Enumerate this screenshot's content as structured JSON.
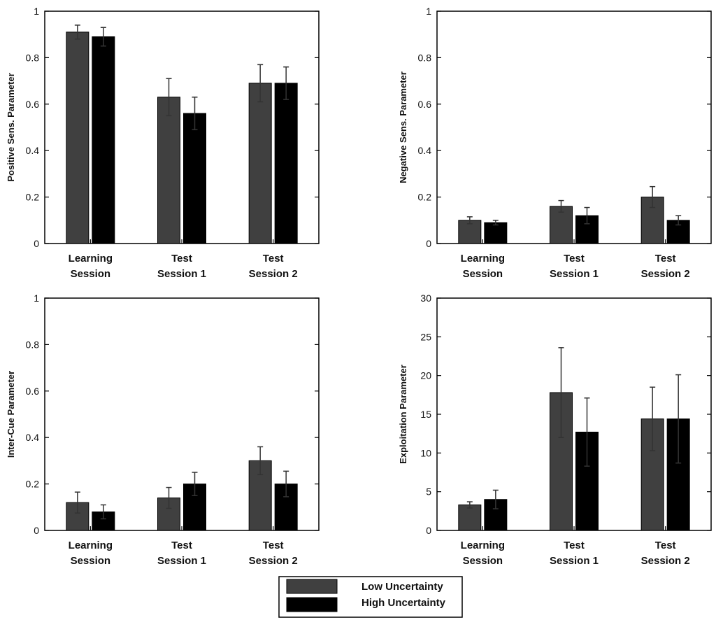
{
  "legend": {
    "items": [
      {
        "label": "Low Uncertainty",
        "color": "#404040"
      },
      {
        "label": "High Uncertainty",
        "color": "#000000"
      }
    ]
  },
  "chart_data": [
    {
      "type": "bar",
      "ylabel": "Positive Sens. Parameter",
      "ylim": [
        0,
        1
      ],
      "yticks": [
        "0",
        "0.2",
        "0.4",
        "0.6",
        "0.8",
        "1"
      ],
      "ytick_values": [
        0,
        0.2,
        0.4,
        0.6,
        0.8,
        1
      ],
      "categories": [
        [
          "Learning",
          "Session"
        ],
        [
          "Test",
          "Session 1"
        ],
        [
          "Test",
          "Session 2"
        ]
      ],
      "series": [
        {
          "name": "Low Uncertainty",
          "values": [
            0.91,
            0.63,
            0.69
          ],
          "errors": [
            0.03,
            0.08,
            0.08
          ]
        },
        {
          "name": "High Uncertainty",
          "values": [
            0.89,
            0.56,
            0.69
          ],
          "errors": [
            0.04,
            0.07,
            0.07
          ]
        }
      ]
    },
    {
      "type": "bar",
      "ylabel": "Negative Sens. Parameter",
      "ylim": [
        0,
        1
      ],
      "yticks": [
        "0",
        "0.2",
        "0.4",
        "0.6",
        "0.8",
        "1"
      ],
      "ytick_values": [
        0,
        0.2,
        0.4,
        0.6,
        0.8,
        1
      ],
      "categories": [
        [
          "Learning",
          "Session"
        ],
        [
          "Test",
          "Session 1"
        ],
        [
          "Test",
          "Session 2"
        ]
      ],
      "series": [
        {
          "name": "Low Uncertainty",
          "values": [
            0.1,
            0.16,
            0.2
          ],
          "errors": [
            0.015,
            0.025,
            0.045
          ]
        },
        {
          "name": "High Uncertainty",
          "values": [
            0.09,
            0.12,
            0.1
          ],
          "errors": [
            0.01,
            0.035,
            0.02
          ]
        }
      ]
    },
    {
      "type": "bar",
      "ylabel": "Inter-Cue Parameter",
      "ylim": [
        0,
        1
      ],
      "yticks": [
        "0",
        "0.2",
        "0.4",
        "0.6",
        "0.8",
        "1"
      ],
      "ytick_values": [
        0,
        0.2,
        0.4,
        0.6,
        0.8,
        1
      ],
      "categories": [
        [
          "Learning",
          "Session"
        ],
        [
          "Test",
          "Session 1"
        ],
        [
          "Test",
          "Session 2"
        ]
      ],
      "series": [
        {
          "name": "Low Uncertainty",
          "values": [
            0.12,
            0.14,
            0.3
          ],
          "errors": [
            0.045,
            0.045,
            0.06
          ]
        },
        {
          "name": "High Uncertainty",
          "values": [
            0.08,
            0.2,
            0.2
          ],
          "errors": [
            0.03,
            0.05,
            0.055
          ]
        }
      ]
    },
    {
      "type": "bar",
      "ylabel": "Exploitation Parameter",
      "ylim": [
        0,
        30
      ],
      "yticks": [
        "0",
        "5",
        "10",
        "15",
        "20",
        "25",
        "30"
      ],
      "ytick_values": [
        0,
        5,
        10,
        15,
        20,
        25,
        30
      ],
      "categories": [
        [
          "Learning",
          "Session"
        ],
        [
          "Test",
          "Session 1"
        ],
        [
          "Test",
          "Session 2"
        ]
      ],
      "series": [
        {
          "name": "Low Uncertainty",
          "values": [
            3.3,
            17.8,
            14.4
          ],
          "errors": [
            0.4,
            5.8,
            4.1
          ]
        },
        {
          "name": "High Uncertainty",
          "values": [
            4.0,
            12.7,
            14.4
          ],
          "errors": [
            1.2,
            4.4,
            5.7
          ]
        }
      ]
    }
  ]
}
